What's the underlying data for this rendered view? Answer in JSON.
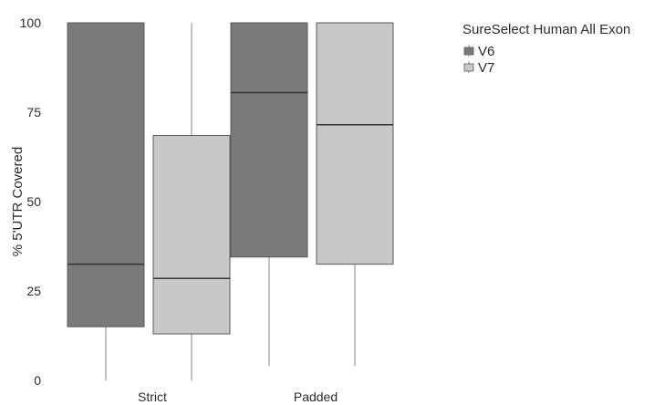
{
  "chart_data": {
    "type": "boxplot",
    "ylabel": "% 5'UTR Covered",
    "xlabel": "",
    "ylim": [
      0,
      100
    ],
    "yticks": [
      0,
      25,
      50,
      75,
      100
    ],
    "categories": [
      "Strict",
      "Padded"
    ],
    "grid": false,
    "legend": {
      "title": "SureSelect Human All Exon",
      "position": "top-right"
    },
    "series": [
      {
        "name": "V6",
        "color": "#7a7a7a",
        "boxes": [
          {
            "category": "Strict",
            "min": 0,
            "q1": 15,
            "median": 32.5,
            "q3": 100,
            "max": 100
          },
          {
            "category": "Padded",
            "min": 4,
            "q1": 34.5,
            "median": 80.5,
            "q3": 100,
            "max": 100
          }
        ]
      },
      {
        "name": "V7",
        "color": "#c8c8c8",
        "boxes": [
          {
            "category": "Strict",
            "min": 0,
            "q1": 13,
            "median": 28.5,
            "q3": 68.5,
            "max": 100
          },
          {
            "category": "Padded",
            "min": 4,
            "q1": 32.5,
            "median": 71.5,
            "q3": 100,
            "max": 100
          }
        ]
      }
    ]
  }
}
